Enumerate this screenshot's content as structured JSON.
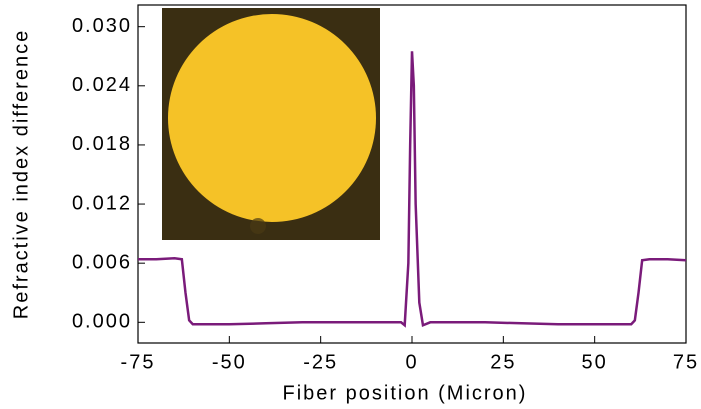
{
  "chart_data": {
    "type": "line",
    "xlabel": "Fiber position (Micron)",
    "ylabel": "Refractive index difference",
    "x": [
      -75,
      -70,
      -65,
      -63,
      -62,
      -61,
      -60,
      -50,
      -40,
      -30,
      -20,
      -10,
      -5,
      -3,
      -2,
      -1,
      -0.5,
      0,
      0.5,
      1,
      2,
      3,
      5,
      10,
      20,
      30,
      40,
      50,
      60,
      61,
      62,
      63,
      65,
      70,
      75
    ],
    "series": [
      {
        "color": "#7a1b7a",
        "values": [
          0.0064,
          0.0064,
          0.0065,
          0.0064,
          0.003,
          0.0002,
          -0.0002,
          -0.0002,
          -0.0001,
          0,
          0,
          0,
          0,
          0,
          -0.0003,
          0.006,
          0.018,
          0.0275,
          0.024,
          0.012,
          0.002,
          -0.0003,
          0,
          0,
          0,
          -0.0001,
          -0.0002,
          -0.0002,
          -0.0002,
          0.0002,
          0.003,
          0.0063,
          0.0064,
          0.0064,
          0.0063
        ]
      }
    ],
    "xlim": [
      -75,
      75
    ],
    "ylim": [
      -0.0021,
      0.0322
    ],
    "xticks": [
      -75,
      -50,
      -25,
      0,
      25,
      50,
      75
    ],
    "yticks": [
      {
        "value": 0,
        "label": "0.000"
      },
      {
        "value": 0.006,
        "label": "0.006"
      },
      {
        "value": 0.012,
        "label": "0.012"
      },
      {
        "value": 0.018,
        "label": "0.018"
      },
      {
        "value": 0.024,
        "label": "0.024"
      },
      {
        "value": 0.03,
        "label": "0.030"
      }
    ]
  }
}
